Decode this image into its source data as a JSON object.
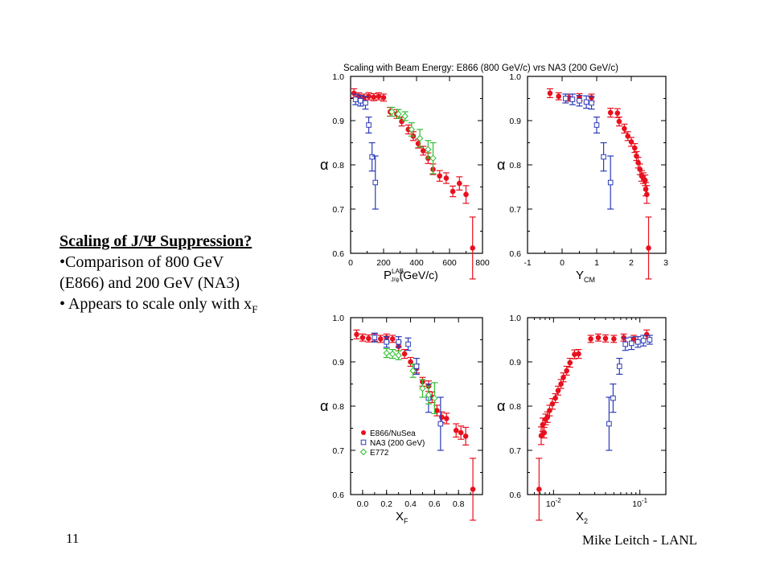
{
  "slide": {
    "number": "11",
    "author": "Mike Leitch - LANL",
    "text": {
      "heading": "Scaling of J/Ψ Suppression?",
      "bullet1a": "•Comparison of 800 GeV",
      "bullet1b": "(E866) and 200 GeV (NA3)",
      "bullet2": "• Appears to scale only with x",
      "bullet2_sub": "F"
    }
  },
  "figure": {
    "title": "Scaling with Beam Energy: E866 (800 GeV/c) vrs NA3 (200 GeV/c)"
  },
  "colors": {
    "e866": "#e8101e",
    "na3": "#2b3bb8",
    "e772": "#2fbf2f",
    "axis": "#000000"
  },
  "legend": {
    "position": "bottom-left of bottom-left panel",
    "entries": [
      {
        "label": "E866/NuSea",
        "series": "e866",
        "marker": "filled-circle"
      },
      {
        "label": "NA3 (200 GeV)",
        "series": "na3",
        "marker": "open-square"
      },
      {
        "label": "E772",
        "series": "e772",
        "marker": "open-diamond"
      }
    ]
  },
  "chart_data": [
    {
      "type": "scatter",
      "xlabel": "P",
      "xlabel_sup": "LAB",
      "xlabel_sub": "J/ψ",
      "xlabel_unit": "(GeV/c)",
      "ylabel": "α",
      "xlim": [
        0,
        800
      ],
      "ylim": [
        0.6,
        1.0
      ],
      "x_ticks": [
        "0",
        "200",
        "400",
        "600",
        "800"
      ],
      "x_tick_values": [
        0,
        200,
        400,
        600,
        800
      ],
      "y_ticks": [
        "0.6",
        "0.7",
        "0.8",
        "0.9",
        "1.0"
      ],
      "y_tick_values": [
        0.6,
        0.7,
        0.8,
        0.9,
        1.0
      ],
      "series": [
        {
          "key": "e866",
          "marker": "circle",
          "points": [
            [
              20,
              0.962,
              0.01
            ],
            [
              50,
              0.955,
              0.008
            ],
            [
              80,
              0.952,
              0.008
            ],
            [
              110,
              0.955,
              0.008
            ],
            [
              140,
              0.953,
              0.008
            ],
            [
              170,
              0.955,
              0.008
            ],
            [
              200,
              0.952,
              0.008
            ],
            [
              240,
              0.92,
              0.01
            ],
            [
              280,
              0.915,
              0.01
            ],
            [
              310,
              0.898,
              0.01
            ],
            [
              350,
              0.88,
              0.01
            ],
            [
              380,
              0.865,
              0.01
            ],
            [
              410,
              0.848,
              0.01
            ],
            [
              440,
              0.832,
              0.01
            ],
            [
              470,
              0.815,
              0.012
            ],
            [
              500,
              0.79,
              0.012
            ],
            [
              540,
              0.775,
              0.012
            ],
            [
              580,
              0.77,
              0.012
            ],
            [
              620,
              0.74,
              0.012
            ],
            [
              660,
              0.758,
              0.015
            ],
            [
              700,
              0.733,
              0.02
            ],
            [
              740,
              0.612,
              0.07
            ]
          ]
        },
        {
          "key": "na3",
          "marker": "square",
          "points": [
            [
              30,
              0.948,
              0.012
            ],
            [
              60,
              0.945,
              0.012
            ],
            [
              90,
              0.94,
              0.014
            ],
            [
              110,
              0.89,
              0.018
            ],
            [
              130,
              0.818,
              0.032
            ],
            [
              150,
              0.76,
              0.06
            ]
          ]
        },
        {
          "key": "e772",
          "marker": "diamond",
          "points": [
            [
              250,
              0.92,
              0.01
            ],
            [
              290,
              0.915,
              0.01
            ],
            [
              330,
              0.91,
              0.01
            ],
            [
              370,
              0.88,
              0.015
            ],
            [
              420,
              0.86,
              0.02
            ],
            [
              470,
              0.835,
              0.02
            ],
            [
              500,
              0.815,
              0.035
            ]
          ]
        }
      ]
    },
    {
      "type": "scatter",
      "xlabel": "Y",
      "xlabel_sub": "CM",
      "ylabel": "α",
      "xlim": [
        -1,
        3
      ],
      "ylim": [
        0.6,
        1.0
      ],
      "x_ticks": [
        "-1",
        "0",
        "1",
        "2",
        "3"
      ],
      "x_tick_values": [
        -1,
        0,
        1,
        2,
        3
      ],
      "y_ticks": [
        "0.6",
        "0.7",
        "0.8",
        "0.9",
        "1.0"
      ],
      "y_tick_values": [
        0.6,
        0.7,
        0.8,
        0.9,
        1.0
      ],
      "series": [
        {
          "key": "e866",
          "marker": "circle",
          "points": [
            [
              -0.35,
              0.962,
              0.01
            ],
            [
              -0.1,
              0.955,
              0.008
            ],
            [
              0.2,
              0.952,
              0.008
            ],
            [
              0.5,
              0.953,
              0.008
            ],
            [
              0.85,
              0.952,
              0.008
            ],
            [
              1.4,
              0.918,
              0.01
            ],
            [
              1.6,
              0.917,
              0.01
            ],
            [
              1.65,
              0.898,
              0.01
            ],
            [
              1.8,
              0.882,
              0.01
            ],
            [
              1.9,
              0.865,
              0.01
            ],
            [
              2.0,
              0.852,
              0.01
            ],
            [
              2.1,
              0.838,
              0.01
            ],
            [
              2.15,
              0.82,
              0.01
            ],
            [
              2.2,
              0.805,
              0.012
            ],
            [
              2.25,
              0.79,
              0.012
            ],
            [
              2.3,
              0.775,
              0.012
            ],
            [
              2.35,
              0.77,
              0.012
            ],
            [
              2.4,
              0.765,
              0.012
            ],
            [
              2.42,
              0.745,
              0.015
            ],
            [
              2.45,
              0.733,
              0.02
            ],
            [
              2.5,
              0.612,
              0.07
            ]
          ]
        },
        {
          "key": "na3",
          "marker": "square",
          "points": [
            [
              0.1,
              0.95,
              0.01
            ],
            [
              0.3,
              0.948,
              0.012
            ],
            [
              0.5,
              0.945,
              0.012
            ],
            [
              0.7,
              0.942,
              0.014
            ],
            [
              0.85,
              0.94,
              0.014
            ],
            [
              1.0,
              0.89,
              0.018
            ],
            [
              1.2,
              0.818,
              0.032
            ],
            [
              1.4,
              0.76,
              0.06
            ]
          ]
        }
      ]
    },
    {
      "type": "scatter",
      "xlabel": "X",
      "xlabel_sub": "F",
      "ylabel": "α",
      "xlim": [
        -0.1,
        1.0
      ],
      "ylim": [
        0.6,
        1.0
      ],
      "x_ticks": [
        "0.0",
        "0.2",
        "0.4",
        "0.6",
        "0.8"
      ],
      "x_tick_values": [
        0,
        0.2,
        0.4,
        0.6,
        0.8
      ],
      "y_ticks": [
        "0.6",
        "0.7",
        "0.8",
        "0.9",
        "1.0"
      ],
      "y_tick_values": [
        0.6,
        0.7,
        0.8,
        0.9,
        1.0
      ],
      "series": [
        {
          "key": "e866",
          "marker": "circle",
          "points": [
            [
              -0.05,
              0.962,
              0.01
            ],
            [
              0.0,
              0.955,
              0.008
            ],
            [
              0.05,
              0.953,
              0.008
            ],
            [
              0.1,
              0.955,
              0.008
            ],
            [
              0.15,
              0.952,
              0.008
            ],
            [
              0.2,
              0.955,
              0.008
            ],
            [
              0.25,
              0.952,
              0.008
            ],
            [
              0.3,
              0.935,
              0.01
            ],
            [
              0.35,
              0.918,
              0.01
            ],
            [
              0.4,
              0.9,
              0.01
            ],
            [
              0.45,
              0.885,
              0.01
            ],
            [
              0.5,
              0.855,
              0.01
            ],
            [
              0.55,
              0.845,
              0.012
            ],
            [
              0.58,
              0.82,
              0.012
            ],
            [
              0.62,
              0.79,
              0.012
            ],
            [
              0.66,
              0.775,
              0.012
            ],
            [
              0.7,
              0.772,
              0.012
            ],
            [
              0.78,
              0.745,
              0.015
            ],
            [
              0.82,
              0.74,
              0.015
            ],
            [
              0.86,
              0.732,
              0.02
            ],
            [
              0.92,
              0.612,
              0.07
            ]
          ]
        },
        {
          "key": "na3",
          "marker": "square",
          "points": [
            [
              0.1,
              0.955,
              0.01
            ],
            [
              0.2,
              0.945,
              0.012
            ],
            [
              0.3,
              0.945,
              0.012
            ],
            [
              0.38,
              0.94,
              0.014
            ],
            [
              0.45,
              0.89,
              0.018
            ],
            [
              0.55,
              0.818,
              0.032
            ],
            [
              0.65,
              0.76,
              0.06
            ]
          ]
        },
        {
          "key": "e772",
          "marker": "diamond",
          "points": [
            [
              0.2,
              0.92,
              0.01
            ],
            [
              0.25,
              0.918,
              0.01
            ],
            [
              0.3,
              0.915,
              0.01
            ],
            [
              0.42,
              0.88,
              0.015
            ],
            [
              0.5,
              0.84,
              0.02
            ],
            [
              0.55,
              0.825,
              0.02
            ],
            [
              0.6,
              0.818,
              0.035
            ]
          ]
        }
      ]
    },
    {
      "type": "scatter",
      "xlabel": "X",
      "xlabel_sub": "2",
      "ylabel": "α",
      "x_scale": "log",
      "xlim": [
        0.005,
        0.2
      ],
      "ylim": [
        0.6,
        1.0
      ],
      "x_ticks": [
        "10",
        "10"
      ],
      "x_tick_sups": [
        "-2",
        "-1"
      ],
      "x_tick_values": [
        0.01,
        0.1
      ],
      "y_ticks": [
        "0.6",
        "0.7",
        "0.8",
        "0.9",
        "1.0"
      ],
      "y_tick_values": [
        0.6,
        0.7,
        0.8,
        0.9,
        1.0
      ],
      "series": [
        {
          "key": "e866",
          "marker": "circle",
          "points": [
            [
              0.0068,
              0.612,
              0.07
            ],
            [
              0.0072,
              0.733,
              0.02
            ],
            [
              0.0075,
              0.758,
              0.015
            ],
            [
              0.0078,
              0.74,
              0.012
            ],
            [
              0.0081,
              0.77,
              0.012
            ],
            [
              0.0085,
              0.775,
              0.012
            ],
            [
              0.009,
              0.79,
              0.012
            ],
            [
              0.0097,
              0.805,
              0.012
            ],
            [
              0.0105,
              0.818,
              0.01
            ],
            [
              0.0113,
              0.835,
              0.01
            ],
            [
              0.0122,
              0.85,
              0.01
            ],
            [
              0.013,
              0.865,
              0.01
            ],
            [
              0.0142,
              0.88,
              0.01
            ],
            [
              0.0155,
              0.898,
              0.01
            ],
            [
              0.0175,
              0.917,
              0.01
            ],
            [
              0.0195,
              0.918,
              0.01
            ],
            [
              0.027,
              0.952,
              0.008
            ],
            [
              0.033,
              0.955,
              0.008
            ],
            [
              0.04,
              0.953,
              0.008
            ],
            [
              0.05,
              0.952,
              0.008
            ],
            [
              0.065,
              0.955,
              0.008
            ],
            [
              0.085,
              0.952,
              0.008
            ],
            [
              0.12,
              0.962,
              0.01
            ]
          ]
        },
        {
          "key": "na3",
          "marker": "square",
          "points": [
            [
              0.044,
              0.76,
              0.06
            ],
            [
              0.049,
              0.818,
              0.032
            ],
            [
              0.058,
              0.89,
              0.018
            ],
            [
              0.068,
              0.94,
              0.014
            ],
            [
              0.08,
              0.942,
              0.014
            ],
            [
              0.095,
              0.945,
              0.012
            ],
            [
              0.11,
              0.948,
              0.012
            ],
            [
              0.13,
              0.95,
              0.01
            ]
          ]
        }
      ]
    }
  ]
}
